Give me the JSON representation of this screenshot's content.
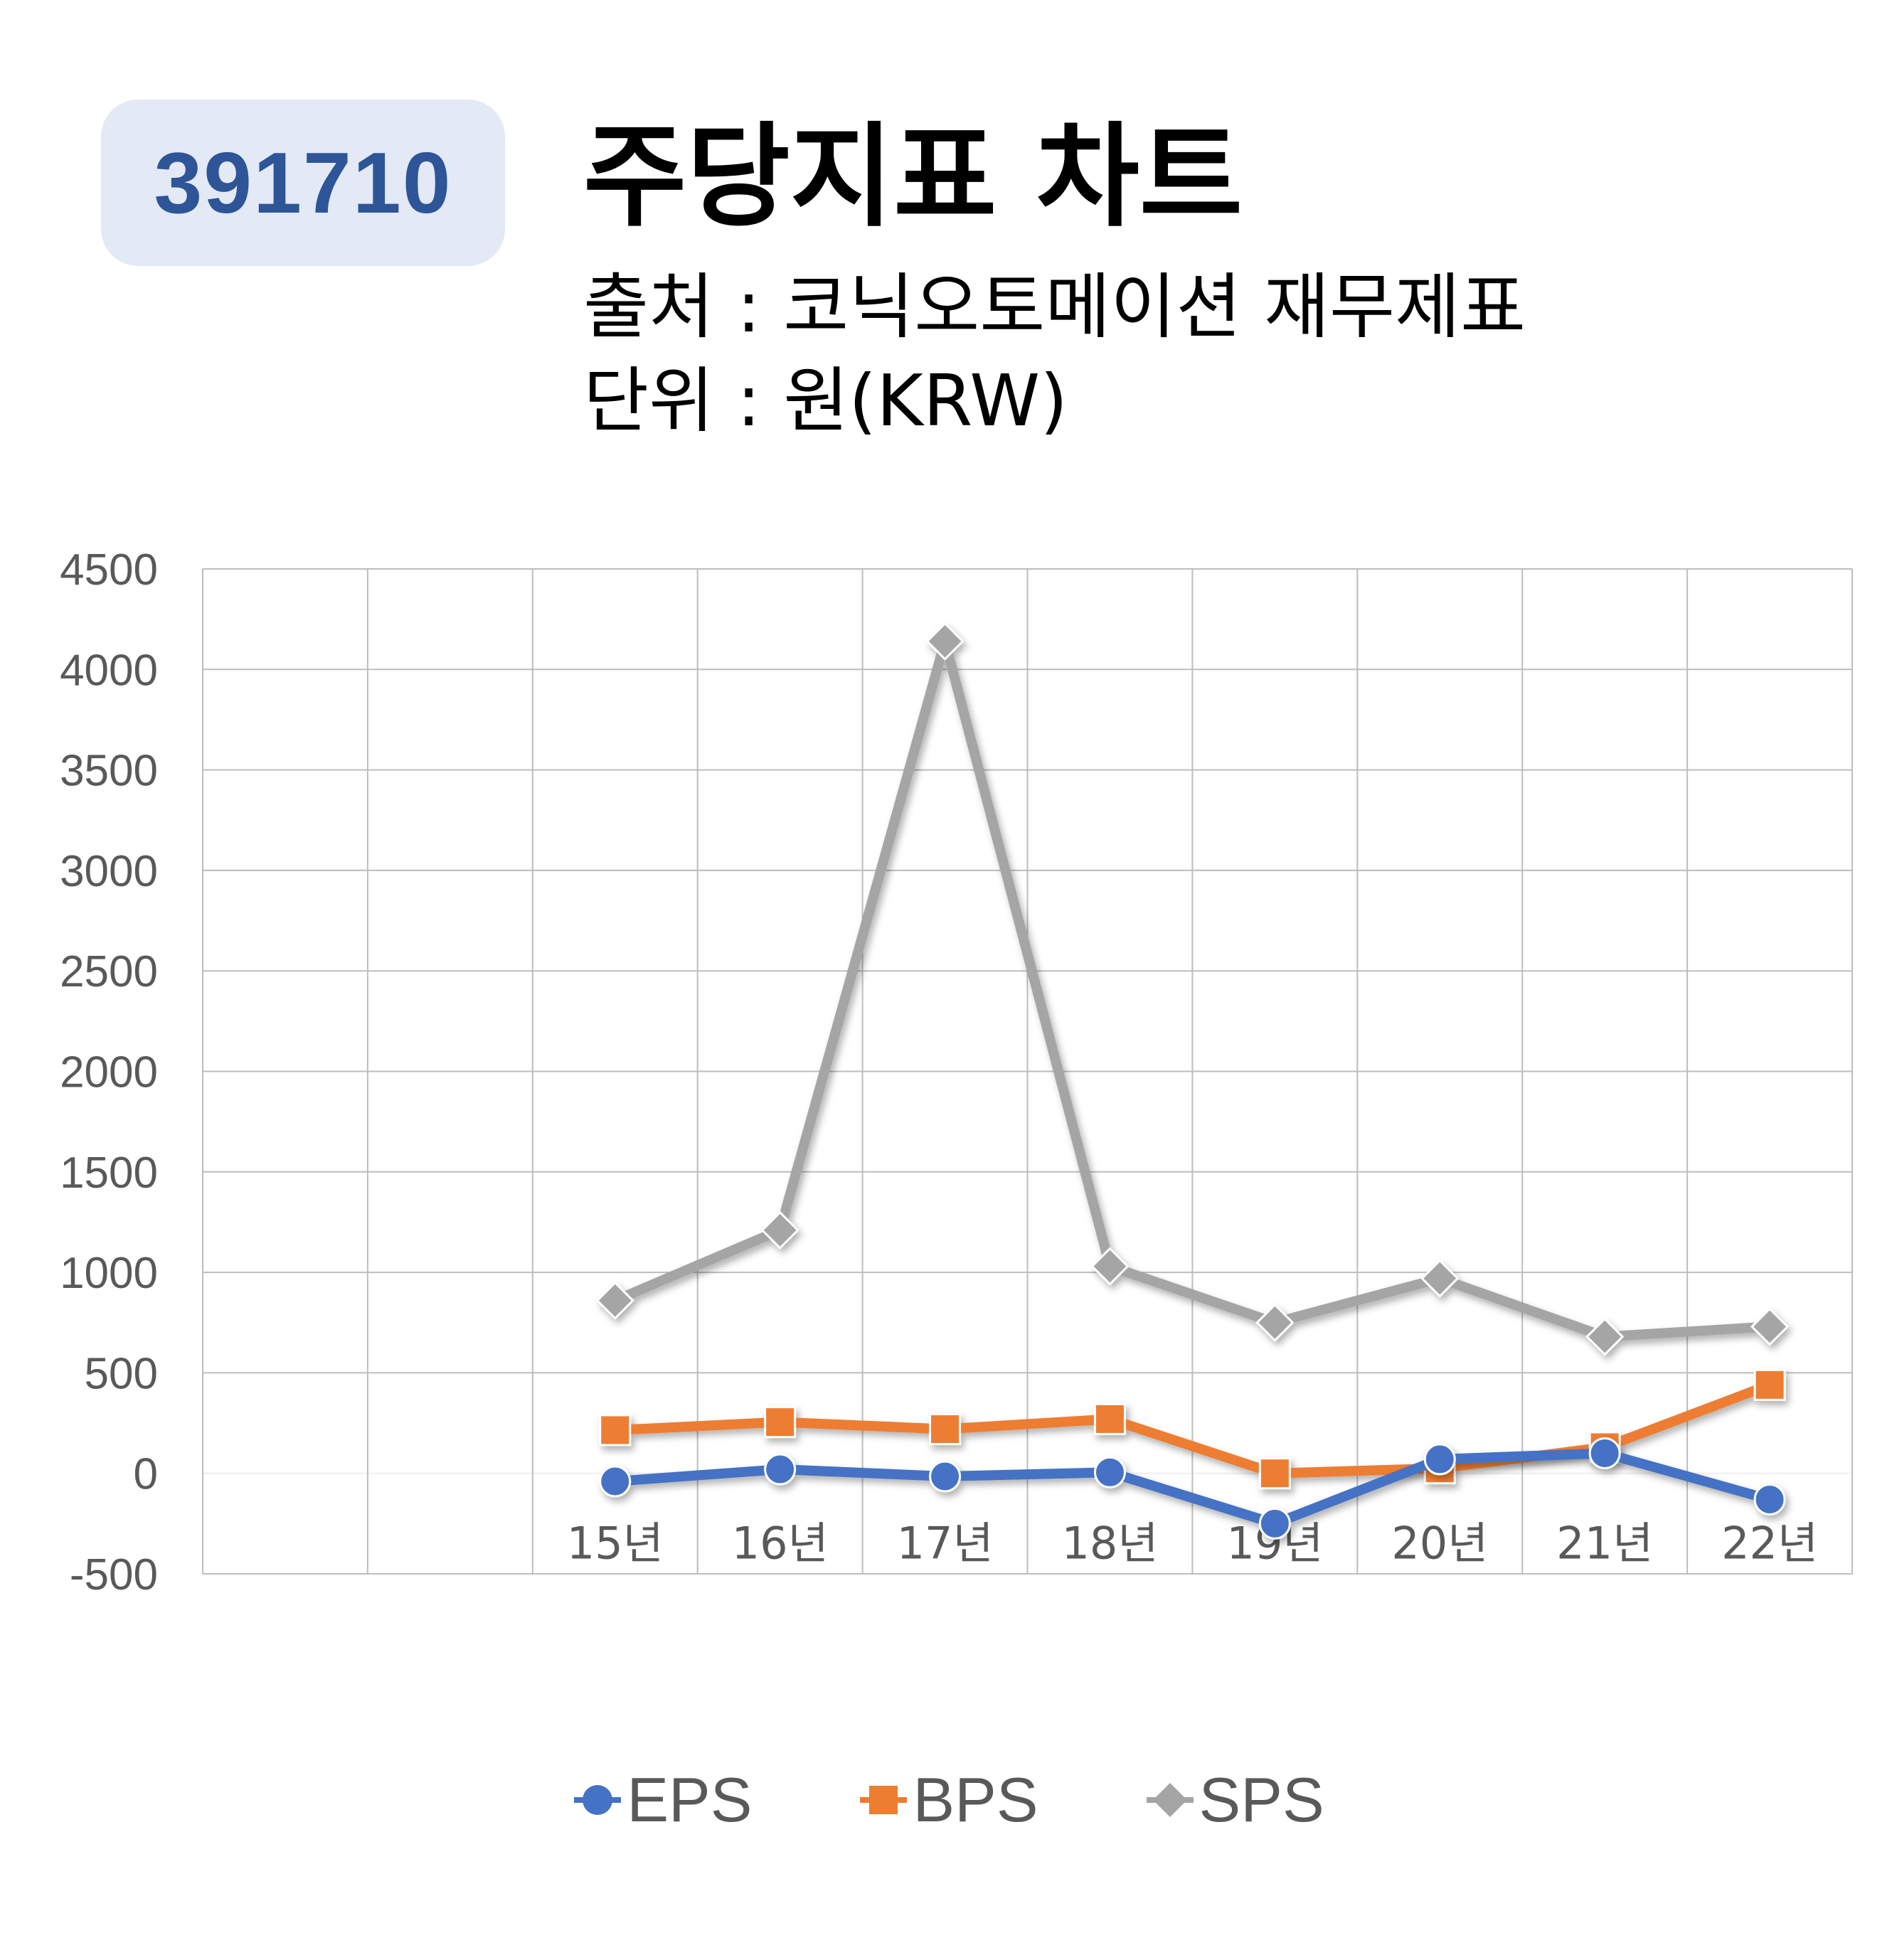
{
  "header": {
    "code": "391710",
    "title": "주당지표 차트",
    "source": "출처 : 코닉오토메이션 재무제표",
    "unit": "단위 : 원(KRW)"
  },
  "colors": {
    "EPS": "#4472c4",
    "BPS": "#ed7d31",
    "SPS": "#a5a5a5",
    "badge_bg": "#e3e9f5",
    "badge_text": "#2d5597"
  },
  "chart_data": {
    "type": "line",
    "categories": [
      "",
      "",
      "15년",
      "16년",
      "17년",
      "18년",
      "19년",
      "20년",
      "21년",
      "22년"
    ],
    "ylim": [
      -500,
      4500
    ],
    "yticks": [
      4500,
      4000,
      3500,
      3000,
      2500,
      2000,
      1500,
      1000,
      500,
      0,
      -500
    ],
    "grid": true,
    "legend_position": "bottom",
    "series": [
      {
        "name": "EPS",
        "marker": "circle",
        "values": [
          null,
          null,
          -40,
          20,
          -15,
          5,
          -250,
          70,
          100,
          -130
        ]
      },
      {
        "name": "BPS",
        "marker": "square",
        "values": [
          null,
          null,
          215,
          255,
          220,
          270,
          0,
          25,
          130,
          440
        ]
      },
      {
        "name": "SPS",
        "marker": "diamond",
        "values": [
          null,
          null,
          860,
          1210,
          4140,
          1030,
          750,
          970,
          680,
          730
        ]
      }
    ]
  }
}
